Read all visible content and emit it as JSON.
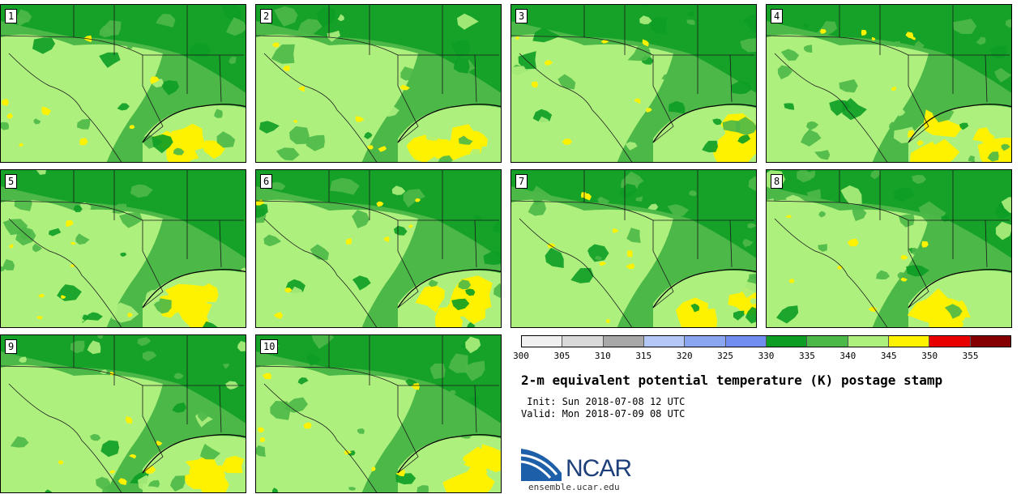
{
  "panels": [
    {
      "label": "1"
    },
    {
      "label": "2"
    },
    {
      "label": "3"
    },
    {
      "label": "4"
    },
    {
      "label": "5"
    },
    {
      "label": "6"
    },
    {
      "label": "7"
    },
    {
      "label": "8"
    },
    {
      "label": "9"
    },
    {
      "label": "10"
    }
  ],
  "legend": {
    "bins": [
      {
        "min": 300,
        "max": 305,
        "color": "#f0f0f0"
      },
      {
        "min": 305,
        "max": 310,
        "color": "#d9d9d9"
      },
      {
        "min": 310,
        "max": 315,
        "color": "#a8a8a8"
      },
      {
        "min": 315,
        "max": 320,
        "color": "#b3c8f7"
      },
      {
        "min": 320,
        "max": 325,
        "color": "#8aa6f0"
      },
      {
        "min": 325,
        "max": 330,
        "color": "#6f8ef0"
      },
      {
        "min": 330,
        "max": 335,
        "color": "#0d9d25"
      },
      {
        "min": 335,
        "max": 340,
        "color": "#4cb848"
      },
      {
        "min": 340,
        "max": 345,
        "color": "#aef07d"
      },
      {
        "min": 345,
        "max": 350,
        "color": "#fff200"
      },
      {
        "min": 350,
        "max": 355,
        "color": "#e80000"
      },
      {
        "min": 355,
        "max": 360,
        "color": "#850000"
      }
    ],
    "ticks": [
      "300",
      "305",
      "310",
      "315",
      "320",
      "325",
      "330",
      "335",
      "340",
      "345",
      "350",
      "355"
    ]
  },
  "title": "2-m equivalent potential temperature (K) postage stamp",
  "init_line": " Init: Sun 2018-07-08 12 UTC",
  "valid_line": "Valid: Mon 2018-07-09 08 UTC",
  "logo_text": "NCAR",
  "website": "ensemble.ucar.edu",
  "colors": {
    "land_dark": "#0d9d25",
    "land_mid": "#4cb848",
    "land_light": "#aef07d",
    "warm": "#fff200",
    "borders": "#1a1a1a"
  }
}
